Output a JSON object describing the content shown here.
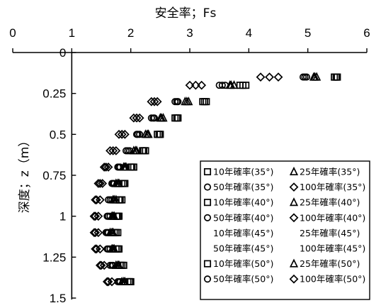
{
  "chart_data": {
    "type": "scatter",
    "title": "",
    "xlabel": "安全率；Fs",
    "ylabel": "深度；z（m）",
    "xlim": [
      0,
      6
    ],
    "ylim": [
      0,
      1.5
    ],
    "y_reversed": true,
    "x_axis_position": "top",
    "grid": false,
    "legend_position": "bottom-right",
    "x_ticks": [
      "0",
      "1",
      "2",
      "3",
      "4",
      "5",
      "6"
    ],
    "y_ticks": [
      "0",
      "0.25",
      "0.5",
      "0.75",
      "1",
      "1.25",
      "1.5"
    ],
    "depths": [
      0.15,
      0.2,
      0.3,
      0.4,
      0.5,
      0.6,
      0.7,
      0.8,
      0.9,
      1.0,
      1.1,
      1.2,
      1.3,
      1.4
    ],
    "series": [
      {
        "name": "10年確率(35°)",
        "marker": "square",
        "x": [
          5.45,
          3.95,
          3.25,
          2.8,
          2.5,
          2.25,
          2.05,
          1.9,
          1.85,
          1.8,
          1.78,
          1.8,
          1.88,
          2.0
        ]
      },
      {
        "name": "25年確率(35°)",
        "marker": "triangle",
        "x": [
          5.15,
          3.75,
          2.95,
          2.55,
          2.3,
          2.1,
          1.92,
          1.8,
          1.75,
          1.72,
          1.7,
          1.72,
          1.8,
          1.9
        ]
      },
      {
        "name": "50年確率(35°)",
        "marker": "circle",
        "x": [
          4.95,
          3.6,
          2.8,
          2.4,
          2.15,
          1.98,
          1.82,
          1.72,
          1.68,
          1.65,
          1.62,
          1.65,
          1.7,
          1.82
        ]
      },
      {
        "name": "100年確率(35°)",
        "marker": "diamond",
        "x": [
          4.5,
          3.2,
          2.45,
          2.15,
          1.9,
          1.75,
          1.62,
          1.52,
          1.48,
          1.45,
          1.45,
          1.48,
          1.55,
          1.68
        ]
      },
      {
        "name": "10年確率(40°)",
        "marker": "square",
        "x": [
          5.5,
          3.9,
          3.28,
          2.78,
          2.48,
          2.22,
          2.02,
          1.88,
          1.82,
          1.78,
          1.75,
          1.78,
          1.85,
          1.98
        ]
      },
      {
        "name": "25年確率(40°)",
        "marker": "triangle",
        "x": [
          5.12,
          3.7,
          2.98,
          2.52,
          2.28,
          2.08,
          1.9,
          1.78,
          1.72,
          1.7,
          1.68,
          1.7,
          1.78,
          1.88
        ]
      },
      {
        "name": "50年確率(40°)",
        "marker": "circle",
        "x": [
          4.98,
          3.55,
          2.78,
          2.38,
          2.12,
          1.95,
          1.8,
          1.7,
          1.65,
          1.62,
          1.6,
          1.62,
          1.68,
          1.8
        ]
      },
      {
        "name": "100年確率(40°)",
        "marker": "diamond",
        "x": [
          4.35,
          3.1,
          2.4,
          2.1,
          1.85,
          1.7,
          1.58,
          1.48,
          1.42,
          1.4,
          1.4,
          1.42,
          1.5,
          1.62
        ]
      },
      {
        "name": "10年確率(45°)",
        "marker": "none",
        "x": []
      },
      {
        "name": "25年確率(45°)",
        "marker": "none",
        "x": []
      },
      {
        "name": "50年確率(45°)",
        "marker": "none",
        "x": []
      },
      {
        "name": "100年確率(45°)",
        "marker": "none",
        "x": []
      },
      {
        "name": "10年確率(50°)",
        "marker": "square",
        "x": [
          5.48,
          3.85,
          3.22,
          2.75,
          2.45,
          2.2,
          2.0,
          1.85,
          1.8,
          1.76,
          1.72,
          1.75,
          1.82,
          1.95
        ]
      },
      {
        "name": "25年確率(50°)",
        "marker": "triangle",
        "x": [
          5.1,
          3.68,
          2.92,
          2.5,
          2.25,
          2.05,
          1.88,
          1.75,
          1.7,
          1.68,
          1.65,
          1.68,
          1.75,
          1.85
        ]
      },
      {
        "name": "50年確率(50°)",
        "marker": "circle",
        "x": [
          4.92,
          3.5,
          2.75,
          2.35,
          2.1,
          1.92,
          1.78,
          1.68,
          1.62,
          1.6,
          1.58,
          1.6,
          1.65,
          1.78
        ]
      },
      {
        "name": "100年確率(50°)",
        "marker": "diamond",
        "x": [
          4.2,
          3.0,
          2.35,
          2.05,
          1.8,
          1.65,
          1.55,
          1.45,
          1.4,
          1.38,
          1.38,
          1.4,
          1.48,
          1.6
        ]
      }
    ]
  }
}
